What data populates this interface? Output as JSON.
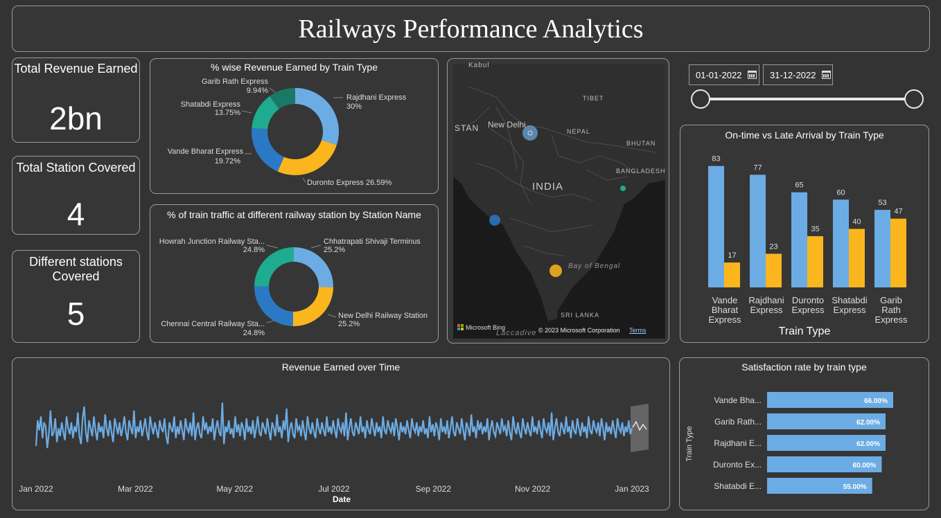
{
  "header": {
    "title": "Railways Performance Analytics"
  },
  "kpis": [
    {
      "label": "Total Revenue Earned",
      "value": "2bn"
    },
    {
      "label": "Total Station Covered",
      "value": "4"
    },
    {
      "label": "Different stations Covered",
      "value": "5"
    }
  ],
  "donut_revenue": {
    "title": "% wise Revenue Earned by Train Type",
    "labels": {
      "rajdhani_name": "Rajdhani Express",
      "rajdhani_pct": "30%",
      "duronto": "Duronto Express 26.59%",
      "vande_name": "Vande Bharat Express",
      "vande_pct": "19.72%",
      "shatabdi_name": "Shatabdi Express",
      "shatabdi_pct": "13.75%",
      "garib_name": "Garib Rath Express",
      "garib_pct": "9.94%"
    }
  },
  "donut_traffic": {
    "title": "% of train traffic at different railway station by Station Name",
    "labels": {
      "chhatrapati_name": "Chhatrapati Shivaji Terminus",
      "chhatrapati_pct": "25.2%",
      "newdelhi_name": "New Delhi Railway Station",
      "newdelhi_pct": "25.2%",
      "chennai_name": "Chennai Central Railway Sta...",
      "chennai_pct": "24.8%",
      "howrah_name": "Howrah Junction Railway Sta...",
      "howrah_pct": "24.8%"
    }
  },
  "map": {
    "labels": {
      "kabul": "Kabul",
      "tibet": "TIBET",
      "stan": "STAN",
      "new_delhi": "New Delhi",
      "nepal": "NEPAL",
      "bhutan": "BHUTAN",
      "bangladesh": "BANGLADESH",
      "india": "INDIA",
      "bay": "Bay of Bengal",
      "sri_lanka": "SRI LANKA",
      "laccadive": "Laccadive"
    },
    "bing": "Microsoft Bing",
    "copyright": "© 2023 Microsoft Corporation",
    "terms": "Terms"
  },
  "date_range": {
    "start": "01-01-2022",
    "end": "31-12-2022"
  },
  "colors": {
    "blue": "#6cace4",
    "yellow": "#fbb61e",
    "dark_blue": "#2b79c4",
    "teal": "#1eab8f",
    "dark_teal": "#1a7866",
    "panel_border": "#9a9a9a"
  },
  "chart_data": [
    {
      "type": "pie",
      "title": "% wise Revenue Earned by Train Type",
      "categories": [
        "Rajdhani Express",
        "Duronto Express",
        "Vande Bharat Express",
        "Shatabdi Express",
        "Garib Rath Express"
      ],
      "values": [
        30,
        26.59,
        19.72,
        13.75,
        9.94
      ]
    },
    {
      "type": "pie",
      "title": "% of train traffic at different railway station by Station Name",
      "categories": [
        "Chhatrapati Shivaji Terminus",
        "New Delhi Railway Station",
        "Chennai Central Railway Sta...",
        "Howrah Junction Railway Sta..."
      ],
      "values": [
        25.2,
        25.2,
        24.8,
        24.8
      ]
    },
    {
      "type": "bar",
      "title": "On-time vs Late Arrival by Train Type",
      "xlabel": "Train Type",
      "categories": [
        "Vande Bharat Express",
        "Rajdhani Express",
        "Duronto Express",
        "Shatabdi Express",
        "Garib Rath Express"
      ],
      "category_lines": [
        [
          "Vande",
          "Bharat",
          "Express"
        ],
        [
          "Rajdhani",
          "Express"
        ],
        [
          "Duronto",
          "Express"
        ],
        [
          "Shatabdi",
          "Express"
        ],
        [
          "Garib",
          "Rath",
          "Express"
        ]
      ],
      "series": [
        {
          "values": [
            83,
            77,
            65,
            60,
            53
          ]
        },
        {
          "values": [
            17,
            23,
            35,
            40,
            47
          ]
        }
      ],
      "ylim": [
        0,
        100
      ]
    },
    {
      "type": "line",
      "title": "Revenue Earned over Time",
      "xlabel": "Date",
      "x_ticks": [
        "Jan 2022",
        "Mar 2022",
        "May 2022",
        "Jul 2022",
        "Sep 2022",
        "Nov 2022",
        "Jan 2023"
      ],
      "x_start": "2022-01-01",
      "x_end": "2023-01-01",
      "ylim": [
        0,
        1
      ],
      "values": [
        0.43,
        0.56,
        0.51,
        0.58,
        0.47,
        0.55,
        0.53,
        0.42,
        0.49,
        0.61,
        0.48,
        0.5,
        0.57,
        0.45,
        0.52,
        0.48,
        0.55,
        0.5,
        0.46,
        0.58,
        0.52,
        0.49,
        0.55,
        0.47,
        0.53,
        0.5,
        0.6,
        0.48,
        0.44,
        0.57,
        0.63,
        0.5,
        0.45,
        0.56,
        0.52,
        0.48,
        0.58,
        0.51,
        0.46,
        0.55,
        0.5,
        0.53,
        0.47,
        0.59,
        0.52,
        0.48,
        0.56,
        0.5,
        0.45,
        0.57,
        0.53,
        0.49,
        0.55,
        0.48,
        0.52,
        0.58,
        0.5,
        0.46,
        0.56,
        0.52,
        0.49,
        0.61,
        0.47,
        0.53,
        0.5,
        0.56,
        0.48,
        0.52,
        0.57,
        0.5,
        0.46,
        0.58,
        0.53,
        0.49,
        0.55,
        0.51,
        0.47,
        0.56,
        0.52,
        0.5,
        0.57,
        0.48,
        0.44,
        0.55,
        0.52,
        0.5,
        0.58,
        0.47,
        0.53,
        0.49,
        0.56,
        0.51,
        0.46,
        0.57,
        0.52,
        0.5,
        0.55,
        0.48,
        0.6,
        0.46,
        0.52,
        0.55,
        0.49,
        0.47,
        0.58,
        0.51,
        0.55,
        0.49,
        0.53,
        0.5,
        0.57,
        0.46,
        0.52,
        0.56,
        0.5,
        0.48,
        0.65,
        0.44,
        0.53,
        0.5,
        0.56,
        0.49,
        0.52,
        0.47,
        0.58,
        0.5,
        0.54,
        0.48,
        0.55,
        0.52,
        0.46,
        0.57,
        0.5,
        0.53,
        0.49,
        0.56,
        0.47,
        0.52,
        0.58,
        0.5,
        0.48,
        0.55,
        0.52,
        0.49,
        0.57,
        0.51,
        0.46,
        0.55,
        0.52,
        0.48,
        0.59,
        0.5,
        0.53,
        0.47,
        0.56,
        0.51,
        0.62,
        0.45,
        0.52,
        0.55,
        0.49,
        0.47,
        0.57,
        0.51,
        0.53,
        0.48,
        0.56,
        0.5,
        0.46,
        0.58,
        0.52,
        0.49,
        0.55,
        0.5,
        0.47,
        0.57,
        0.52,
        0.49,
        0.55,
        0.51,
        0.48,
        0.58,
        0.5,
        0.53,
        0.49,
        0.56,
        0.51,
        0.47,
        0.57,
        0.52,
        0.5,
        0.55,
        0.48,
        0.6,
        0.46,
        0.52,
        0.57,
        0.5,
        0.48,
        0.55,
        0.52,
        0.49,
        0.58,
        0.5,
        0.53,
        0.47,
        0.56,
        0.51,
        0.49,
        0.57,
        0.52,
        0.48,
        0.55,
        0.5,
        0.53,
        0.47,
        0.58,
        0.51,
        0.49,
        0.56,
        0.52,
        0.5,
        0.55,
        0.48,
        0.57,
        0.52,
        0.46,
        0.55,
        0.5,
        0.53,
        0.49,
        0.56,
        0.51,
        0.47,
        0.57,
        0.52,
        0.5,
        0.55,
        0.48,
        0.53,
        0.5,
        0.56,
        0.49,
        0.52,
        0.47,
        0.58,
        0.5,
        0.54,
        0.48,
        0.55,
        0.52,
        0.46,
        0.57,
        0.5,
        0.53,
        0.49,
        0.56,
        0.47,
        0.52,
        0.58,
        0.5,
        0.48,
        0.55,
        0.52,
        0.49,
        0.57,
        0.51,
        0.46,
        0.55,
        0.52,
        0.48,
        0.59,
        0.5,
        0.53,
        0.47,
        0.56,
        0.51,
        0.55,
        0.49,
        0.53,
        0.5,
        0.57,
        0.46,
        0.52,
        0.56,
        0.5,
        0.48,
        0.55,
        0.52,
        0.49,
        0.57,
        0.51,
        0.53,
        0.48,
        0.56,
        0.5,
        0.46,
        0.58,
        0.52,
        0.49,
        0.55,
        0.5,
        0.47,
        0.57,
        0.52,
        0.49,
        0.55,
        0.51,
        0.48,
        0.58,
        0.5,
        0.53,
        0.49,
        0.56,
        0.51,
        0.47,
        0.57,
        0.52,
        0.5,
        0.55,
        0.48,
        0.6,
        0.46,
        0.52,
        0.57,
        0.5,
        0.48,
        0.55,
        0.52,
        0.49,
        0.58,
        0.5,
        0.53,
        0.47,
        0.56,
        0.51,
        0.49,
        0.57,
        0.52,
        0.48,
        0.55,
        0.5,
        0.53,
        0.47,
        0.58,
        0.51,
        0.49,
        0.56,
        0.52,
        0.5,
        0.55,
        0.48,
        0.57,
        0.52,
        0.46,
        0.55,
        0.5,
        0.53,
        0.49,
        0.56,
        0.51,
        0.47,
        0.57,
        0.52,
        0.5,
        0.55,
        0.48,
        0.53,
        0.5,
        0.56,
        0.49,
        0.52
      ]
    },
    {
      "type": "bar",
      "title": "Satisfaction rate by train type",
      "ylabel": "Train Type",
      "categories": [
        "Vande Bha...",
        "Garib Rath...",
        "Rajdhani E...",
        "Duronto Ex...",
        "Shatabdi E..."
      ],
      "values": [
        66,
        62,
        62,
        60,
        55
      ],
      "value_labels": [
        "66.00%",
        "62.00%",
        "62.00%",
        "60.00%",
        "55.00%"
      ]
    }
  ]
}
